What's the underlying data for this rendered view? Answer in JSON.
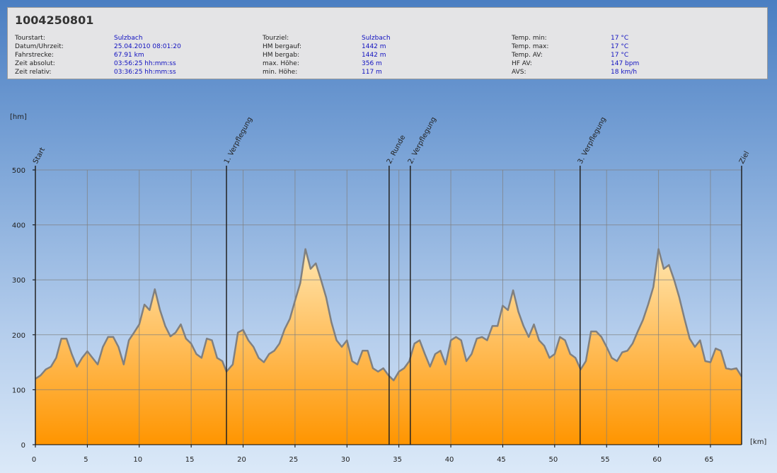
{
  "header": {
    "title": "1004250801",
    "columns": [
      [
        [
          "Tourstart:",
          "Sulzbach"
        ],
        [
          "Datum/Uhrzeit:",
          "25.04.2010 08:01:20"
        ],
        [
          "Fahrstrecke:",
          "67.91 km"
        ],
        [
          "Zeit absolut:",
          "03:56:25 hh:mm:ss"
        ],
        [
          "Zeit relativ:",
          "03:36:25 hh:mm:ss"
        ]
      ],
      [
        [
          "Tourziel:",
          "Sulzbach"
        ],
        [
          "HM bergauf:",
          "1442 m"
        ],
        [
          "HM bergab:",
          "1442 m"
        ],
        [
          "max. Höhe:",
          "356 m"
        ],
        [
          "min. Höhe:",
          "117 m"
        ]
      ],
      [
        [
          "Temp. min:",
          "17 °C"
        ],
        [
          "Temp. max:",
          "17 °C"
        ],
        [
          "Temp. AV:",
          "17 °C"
        ],
        [
          "HF AV:",
          "147 bpm"
        ],
        [
          "AVS:",
          "18 km/h"
        ]
      ]
    ]
  },
  "chart_data": {
    "type": "area",
    "y_label": "[hm]",
    "x_label": "[km]",
    "xlim": [
      0,
      68
    ],
    "xticks": [
      0,
      5,
      10,
      15,
      20,
      25,
      30,
      35,
      40,
      45,
      50,
      55,
      60,
      65
    ],
    "ylim": [
      0,
      500
    ],
    "yticks": [
      0,
      100,
      200,
      300,
      400,
      500
    ],
    "grid": true,
    "markers": [
      {
        "label": "Start",
        "x": 0
      },
      {
        "label": "1. Verpflegung",
        "x": 18.4
      },
      {
        "label": "2. Runde",
        "x": 34.06
      },
      {
        "label": "2. Verpflegung",
        "x": 36.1
      },
      {
        "label": "3. Verpflegung",
        "x": 52.45
      },
      {
        "label": "Ziel",
        "x": 68
      }
    ],
    "x": [
      0,
      0.5,
      1,
      1.5,
      2,
      2.5,
      3,
      3.5,
      4,
      4.5,
      5,
      5.5,
      6,
      6.5,
      7,
      7.5,
      8,
      8.5,
      9,
      9.5,
      10,
      10.5,
      11,
      11.5,
      12,
      12.5,
      13,
      13.5,
      14,
      14.5,
      15,
      15.5,
      16,
      16.5,
      17,
      17.5,
      18,
      18.4,
      19,
      19.5,
      20,
      20.5,
      21,
      21.5,
      22,
      22.5,
      23,
      23.5,
      24,
      24.5,
      25,
      25.5,
      26,
      26.5,
      27,
      27.5,
      28,
      28.5,
      29,
      29.5,
      30,
      30.5,
      31,
      31.5,
      32,
      32.5,
      33,
      33.5,
      34,
      34.5,
      35,
      35.5,
      36,
      36.5,
      37,
      37.5,
      38,
      38.5,
      39,
      39.5,
      40,
      40.5,
      41,
      41.5,
      42,
      42.5,
      43,
      43.5,
      44,
      44.5,
      45,
      45.5,
      46,
      46.5,
      47,
      47.5,
      48,
      48.5,
      49,
      49.5,
      50,
      50.5,
      51,
      51.5,
      52,
      52.5,
      53,
      53.5,
      54,
      54.5,
      55,
      55.5,
      56,
      56.5,
      57,
      57.5,
      58,
      58.5,
      59,
      59.5,
      60,
      60.5,
      61,
      61.5,
      62,
      62.5,
      63,
      63.5,
      64,
      64.5,
      65,
      65.5,
      66,
      66.5,
      67,
      67.5,
      68
    ],
    "series": [
      {
        "color": "#ff9500",
        "line_color": "#808080",
        "values": [
          120,
          126,
          137,
          142,
          158,
          193,
          193,
          165,
          142,
          158,
          170,
          158,
          146,
          178,
          196,
          196,
          178,
          146,
          190,
          204,
          219,
          255,
          245,
          283,
          245,
          216,
          197,
          204,
          219,
          193,
          184,
          165,
          158,
          193,
          190,
          158,
          152,
          133,
          146,
          204,
          209,
          190,
          178,
          158,
          150,
          165,
          171,
          184,
          210,
          229,
          262,
          294,
          356,
          320,
          330,
          300,
          268,
          223,
          190,
          178,
          190,
          152,
          146,
          171,
          171,
          139,
          133,
          139,
          126,
          117,
          133,
          139,
          152,
          184,
          190,
          165,
          142,
          165,
          171,
          146,
          190,
          196,
          190,
          152,
          165,
          193,
          196,
          190,
          216,
          216,
          253,
          245,
          281,
          242,
          216,
          196,
          219,
          190,
          180,
          158,
          165,
          196,
          190,
          165,
          158,
          137,
          152,
          206,
          206,
          196,
          178,
          158,
          152,
          168,
          171,
          184,
          206,
          227,
          255,
          287,
          356,
          320,
          327,
          300,
          268,
          229,
          193,
          178,
          190,
          152,
          150,
          175,
          171,
          139,
          137,
          139,
          124
        ]
      }
    ]
  }
}
